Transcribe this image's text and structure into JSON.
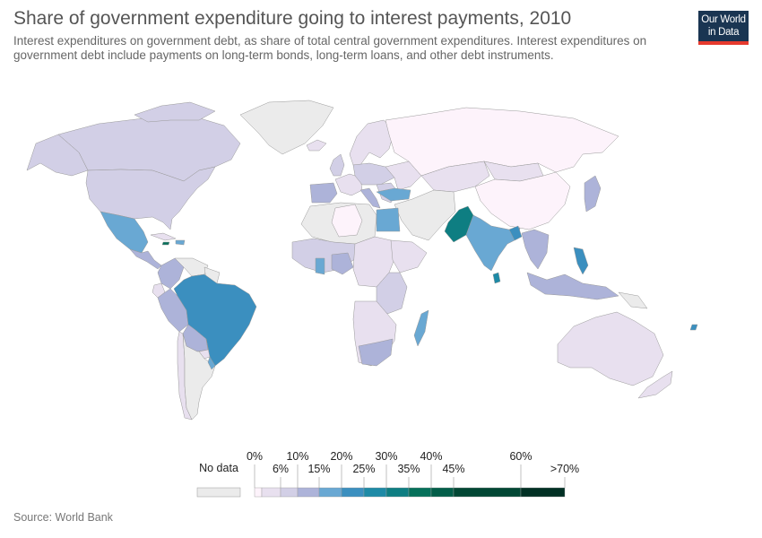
{
  "header": {
    "title": "Share of government expenditure going to interest payments, 2010",
    "subtitle": "Interest expenditures on government debt, as share of total central government expenditures. Interest expenditures on government debt include payments on long-term bonds, long-term loans, and other debt instruments.",
    "logo_line1": "Our World",
    "logo_line2": "in Data"
  },
  "colors": {
    "no_data": "#ebebeb",
    "c0": "#fdf3fb",
    "c1": "#e8e0ef",
    "c2": "#d2cfe6",
    "c3": "#adb3d9",
    "c4": "#69a8d3",
    "c5": "#3b8fbf",
    "c6": "#1e8aa6",
    "c7": "#0e7e82",
    "c8": "#06705a",
    "c9": "#035e49",
    "c10": "#024734",
    "c11": "#013024"
  },
  "legend": {
    "no_data_label": "No data",
    "upper_ticks": [
      "0%",
      "10%",
      "20%",
      "30%",
      "40%",
      "60%"
    ],
    "lower_ticks": [
      "6%",
      "15%",
      "25%",
      "35%",
      "45%",
      ">70%"
    ]
  },
  "source": "Source: World Bank"
}
